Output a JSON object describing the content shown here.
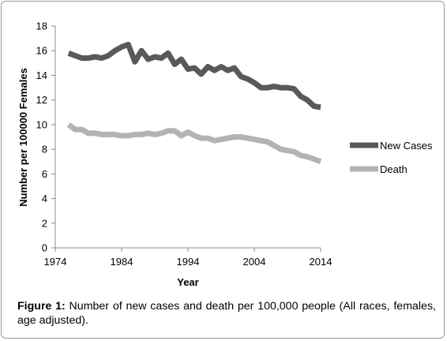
{
  "chart_data": {
    "type": "line",
    "xlabel": "Year",
    "ylabel": "Number per 100000 Females",
    "xlim": [
      1974,
      2014
    ],
    "ylim": [
      0,
      18
    ],
    "x_ticks": [
      "1974",
      "1984",
      "1994",
      "2004",
      "2014"
    ],
    "y_ticks": [
      "0",
      "2",
      "4",
      "6",
      "8",
      "10",
      "12",
      "14",
      "16",
      "18"
    ],
    "grid": false,
    "legend_position": "right",
    "series": [
      {
        "name": "New Cases",
        "color": "#595959",
        "x": [
          1976,
          1977,
          1978,
          1979,
          1980,
          1981,
          1982,
          1983,
          1984,
          1985,
          1986,
          1987,
          1988,
          1989,
          1990,
          1991,
          1992,
          1993,
          1994,
          1995,
          1996,
          1997,
          1998,
          1999,
          2000,
          2001,
          2002,
          2003,
          2004,
          2005,
          2006,
          2007,
          2008,
          2009,
          2010,
          2011,
          2012,
          2013,
          2014
        ],
        "values": [
          15.8,
          15.6,
          15.4,
          15.4,
          15.5,
          15.4,
          15.6,
          16.0,
          16.3,
          16.5,
          15.1,
          16.0,
          15.3,
          15.5,
          15.4,
          15.8,
          14.9,
          15.3,
          14.5,
          14.6,
          14.1,
          14.7,
          14.4,
          14.7,
          14.4,
          14.6,
          13.9,
          13.7,
          13.4,
          13.0,
          13.0,
          13.1,
          13.0,
          13.0,
          12.9,
          12.3,
          12.0,
          11.5,
          11.4
        ]
      },
      {
        "name": "Death",
        "color": "#b3b3b3",
        "x": [
          1976,
          1977,
          1978,
          1979,
          1980,
          1981,
          1982,
          1983,
          1984,
          1985,
          1986,
          1987,
          1988,
          1989,
          1990,
          1991,
          1992,
          1993,
          1994,
          1995,
          1996,
          1997,
          1998,
          1999,
          2000,
          2001,
          2002,
          2003,
          2004,
          2005,
          2006,
          2007,
          2008,
          2009,
          2010,
          2011,
          2012,
          2013,
          2014
        ],
        "values": [
          10.0,
          9.6,
          9.6,
          9.3,
          9.3,
          9.2,
          9.2,
          9.2,
          9.1,
          9.1,
          9.2,
          9.2,
          9.3,
          9.2,
          9.3,
          9.5,
          9.5,
          9.1,
          9.4,
          9.1,
          8.9,
          8.9,
          8.7,
          8.8,
          8.9,
          9.0,
          9.0,
          8.9,
          8.8,
          8.7,
          8.6,
          8.3,
          8.0,
          7.9,
          7.8,
          7.5,
          7.4,
          7.2,
          7.0
        ]
      }
    ]
  },
  "caption": {
    "label": "Figure 1:",
    "text": " Number of new cases and death per 100,000 people (All races, females, age adjusted)."
  }
}
